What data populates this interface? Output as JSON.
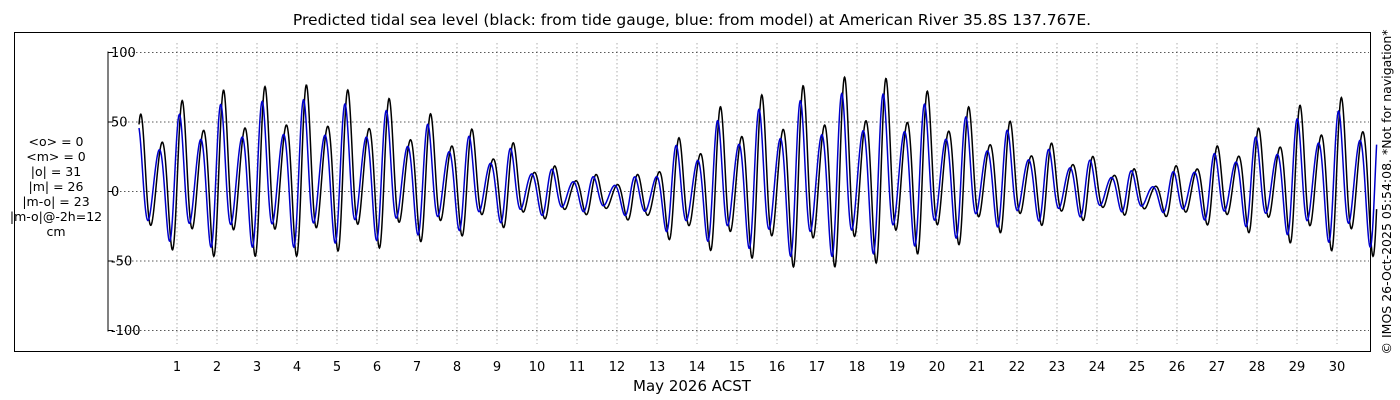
{
  "chart_data": {
    "type": "line",
    "title": "Predicted tidal sea level (black: from tide gauge, blue: from model) at American River 35.8S 137.767E.",
    "xlabel": "May 2026 ACST",
    "ylabel": "",
    "xlim": [
      0.0,
      31.05
    ],
    "ylim": [
      -105,
      105
    ],
    "x_ticks": [
      1,
      2,
      3,
      4,
      5,
      6,
      7,
      8,
      9,
      10,
      11,
      12,
      13,
      14,
      15,
      16,
      17,
      18,
      19,
      20,
      21,
      22,
      23,
      24,
      25,
      26,
      27,
      28,
      29,
      30
    ],
    "x_tick_labels": [
      "1",
      "2",
      "3",
      "4",
      "5",
      "6",
      "7",
      "8",
      "9",
      "10",
      "11",
      "12",
      "13",
      "14",
      "15",
      "16",
      "17",
      "18",
      "19",
      "20",
      "21",
      "22",
      "23",
      "24",
      "25",
      "26",
      "27",
      "28",
      "29",
      "30"
    ],
    "y_ticks": [
      -100,
      -50,
      0,
      50,
      100
    ],
    "y_tick_labels": [
      "-100",
      "-50",
      "0",
      "50",
      "100"
    ],
    "grid": true,
    "legend": "none",
    "envelope": {
      "description_days": [
        0.1,
        2,
        4,
        5.5,
        7.5,
        9,
        10.5,
        11.5,
        12.5,
        13.5,
        15,
        16.5,
        18,
        19,
        20,
        21.5,
        23,
        24.5,
        25.5,
        26.5,
        28,
        29.5,
        31
      ],
      "high_cm": [
        55,
        72,
        76,
        72,
        55,
        38,
        18,
        12,
        12,
        38,
        65,
        75,
        82,
        80,
        70,
        52,
        34,
        20,
        10,
        28,
        45,
        65,
        70
      ],
      "low_cm": [
        -42,
        -50,
        -50,
        -45,
        -38,
        -28,
        -20,
        -17,
        -22,
        -38,
        -50,
        -58,
        -58,
        -52,
        -45,
        -32,
        -25,
        -18,
        -18,
        -25,
        -32,
        -45,
        -50
      ]
    },
    "series": [
      {
        "name": "black: from tide gauge",
        "color": "#000000",
        "values_ref": "synthesized semidiurnal tide following envelope"
      },
      {
        "name": "blue: from model",
        "color": "#0000cc",
        "values_ref": "model tide, slightly earlier phase, lower amplitude"
      }
    ],
    "colors": {
      "gauge": "#000000",
      "model": "#0000cc",
      "grid": "#9a9a9a",
      "frame": "#000000"
    }
  },
  "stats": {
    "lines": [
      "<o> = 0",
      "<m> = 0",
      "|o| = 31",
      "|m| = 26",
      "|m-o| = 23",
      "|m-o|@-2h=12",
      "cm"
    ]
  },
  "side_note": "© IMOS 26-Oct-2025 05:54:08. *Not for navigation*"
}
